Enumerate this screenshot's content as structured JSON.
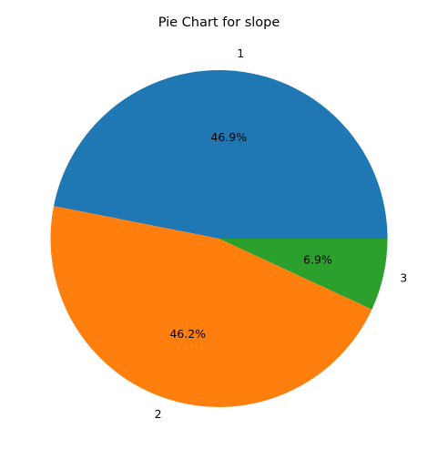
{
  "chart_data": {
    "type": "pie",
    "title": "Pie Chart for slope",
    "categories": [
      "1",
      "2",
      "3"
    ],
    "values": [
      46.9,
      46.2,
      6.9
    ],
    "percent_labels": [
      "46.9%",
      "46.2%",
      "6.9%"
    ],
    "colors": [
      "#1f77b4",
      "#ff7f0e",
      "#2ca02c"
    ],
    "start_angle": 0,
    "direction": "counterclockwise"
  }
}
